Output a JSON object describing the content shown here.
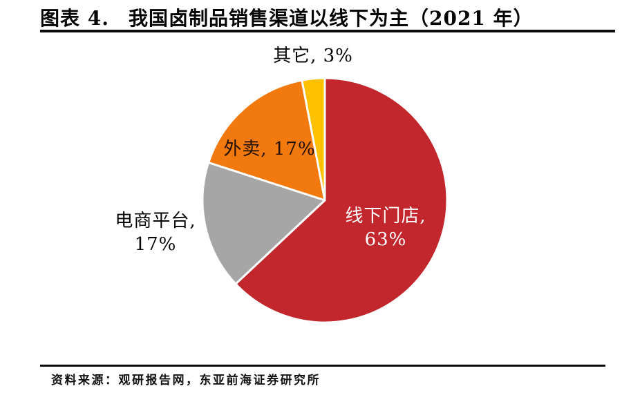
{
  "header": {
    "label": "图表 4.",
    "title": "我国卤制品销售渠道以线下为主（2021 年）"
  },
  "chart_data": {
    "type": "pie",
    "title": "我国卤制品销售渠道以线下为主（2021年）",
    "categories": [
      "线下门店",
      "电商平台",
      "外卖",
      "其它"
    ],
    "values": [
      63,
      17,
      17,
      3
    ],
    "unit": "%",
    "colors": [
      "#c1272d",
      "#a6a6a6",
      "#f1790d",
      "#ffc000"
    ],
    "start_angle_deg": 0,
    "direction": "clockwise",
    "slice_border_color": "#ffffff",
    "legend": "none",
    "labels": [
      {
        "category": "线下门店",
        "lines": [
          "线下门店,",
          "63%"
        ],
        "color": "#ffffff",
        "placement": "inside"
      },
      {
        "category": "电商平台",
        "lines": [
          "电商平台,",
          "17%"
        ],
        "color": "#050505",
        "placement": "outside"
      },
      {
        "category": "外卖",
        "lines": [
          "外卖, 17%"
        ],
        "color": "#200f02",
        "placement": "inside"
      },
      {
        "category": "其它",
        "lines": [
          "其它, 3%"
        ],
        "color": "#050505",
        "placement": "outside"
      }
    ]
  },
  "footer": {
    "source": "资料来源：观研报告网，东亚前海证券研究所"
  }
}
